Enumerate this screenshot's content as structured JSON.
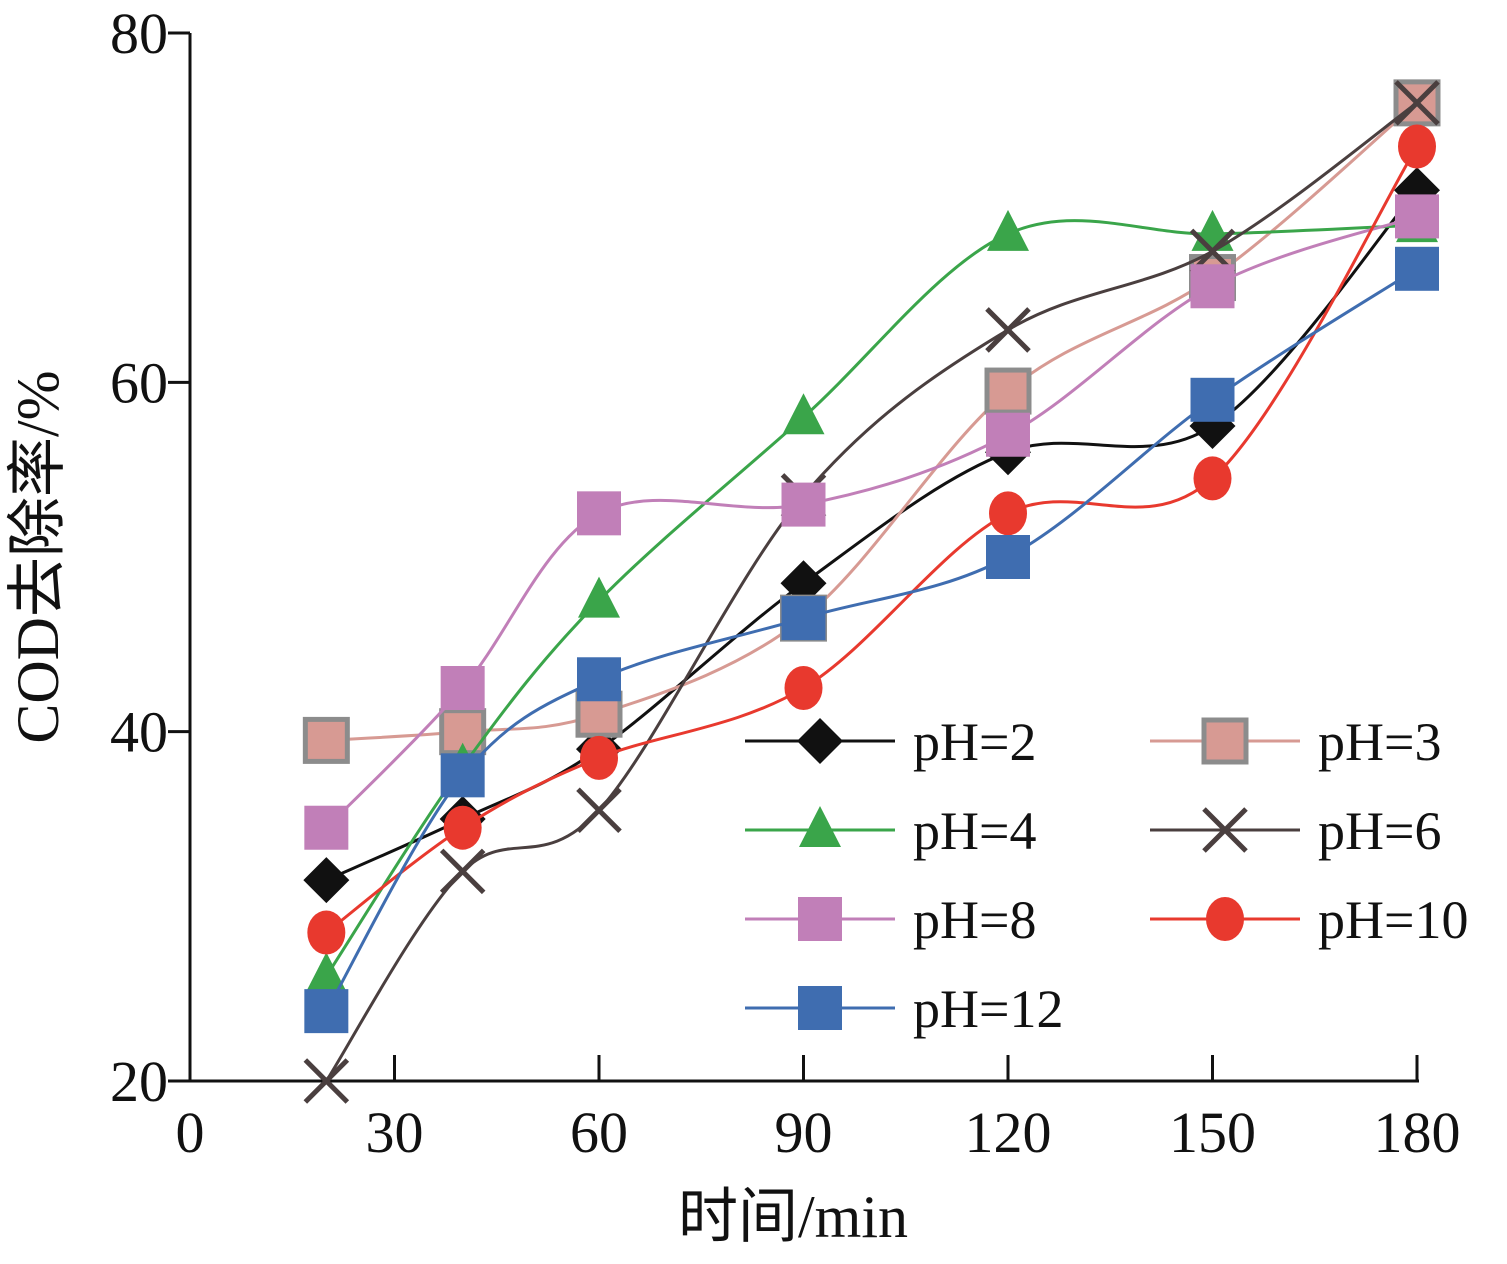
{
  "chart_data": {
    "type": "line",
    "xlabel": "时间/min",
    "ylabel": "COD去除率/%",
    "xlim": [
      0,
      180
    ],
    "ylim": [
      20,
      80
    ],
    "xticks": [
      "0",
      "30",
      "60",
      "90",
      "120",
      "150",
      "180"
    ],
    "yticks": [
      "20",
      "40",
      "60",
      "80"
    ],
    "grid": false,
    "legend_position": "bottom-right",
    "x": [
      20,
      40,
      60,
      90,
      120,
      150,
      180
    ],
    "series": [
      {
        "name": "pH=2",
        "color": "#111111",
        "marker": "diamond",
        "values": [
          31.5,
          35.0,
          39.0,
          48.5,
          56.0,
          57.5,
          71.0
        ]
      },
      {
        "name": "pH=3",
        "color": "#d79a93",
        "marker": "square-outlined",
        "values": [
          39.5,
          40.0,
          41.0,
          46.5,
          59.5,
          66.0,
          76.0
        ]
      },
      {
        "name": "pH=4",
        "color": "#3aa54a",
        "marker": "triangle",
        "values": [
          26.0,
          38.0,
          47.5,
          58.0,
          68.5,
          68.5,
          69.0
        ]
      },
      {
        "name": "pH=6",
        "color": "#4a3f3f",
        "marker": "x",
        "values": [
          20.0,
          32.0,
          35.5,
          53.5,
          63.0,
          67.5,
          76.0
        ]
      },
      {
        "name": "pH=8",
        "color": "#c17fb8",
        "marker": "square",
        "values": [
          34.5,
          42.5,
          52.5,
          53.0,
          57.0,
          65.5,
          69.5
        ]
      },
      {
        "name": "pH=10",
        "color": "#e8392e",
        "marker": "circle",
        "values": [
          28.5,
          34.5,
          38.5,
          42.5,
          52.5,
          54.5,
          73.5
        ]
      },
      {
        "name": "pH=12",
        "color": "#3f6db0",
        "marker": "square",
        "values": [
          24.0,
          37.5,
          43.0,
          46.5,
          50.0,
          59.0,
          66.5
        ]
      }
    ]
  }
}
